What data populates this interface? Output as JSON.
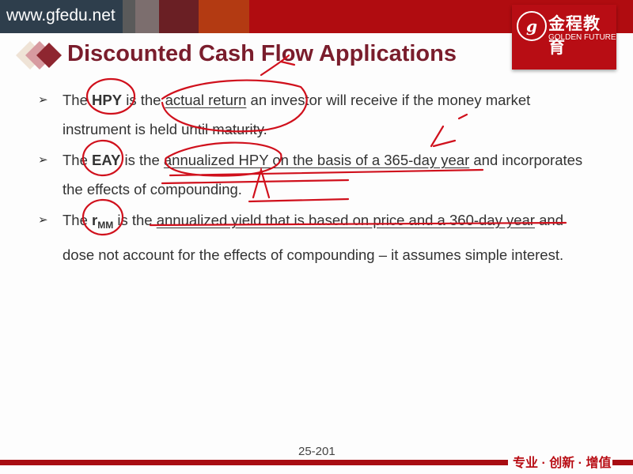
{
  "header": {
    "site": "www.gfedu.net",
    "bar_colors": [
      "#2e3e4c",
      "#5a5a5a",
      "#7c6e6e",
      "#6a1f24",
      "#b33a12",
      "#b00c10"
    ],
    "logo": {
      "chinese": "金程教育",
      "english": "GOLDEN FUTURE",
      "emblem": "g"
    }
  },
  "slide": {
    "title": "Discounted Cash Flow Applications",
    "title_color": "#7a1d2c",
    "bullets": [
      {
        "pre": "The ",
        "term": "HPY",
        "mid": " is the ",
        "u1": "actual return",
        "rest": " an investor will receive if the money market instrument is held until maturity."
      },
      {
        "pre": "The ",
        "term": "EAY",
        "mid": " is the ",
        "u1": "annualized HPY on the basis of a 365-day year",
        "rest": " and incorporates the effects of compounding."
      },
      {
        "pre": "The ",
        "term": "r",
        "term_sub": "MM",
        "mid": " is the ",
        "u1": "annualized yield that is based on price and a 360-day year",
        "rest": " and dose not account for the effects of compounding – it assumes simple interest."
      }
    ],
    "bullet_marker": "➢",
    "page_number": "25-201"
  },
  "footer": {
    "slogan": "专业 · 创新 · 增值",
    "accent": "#a80d12"
  },
  "annotation_color": "#d0101c"
}
